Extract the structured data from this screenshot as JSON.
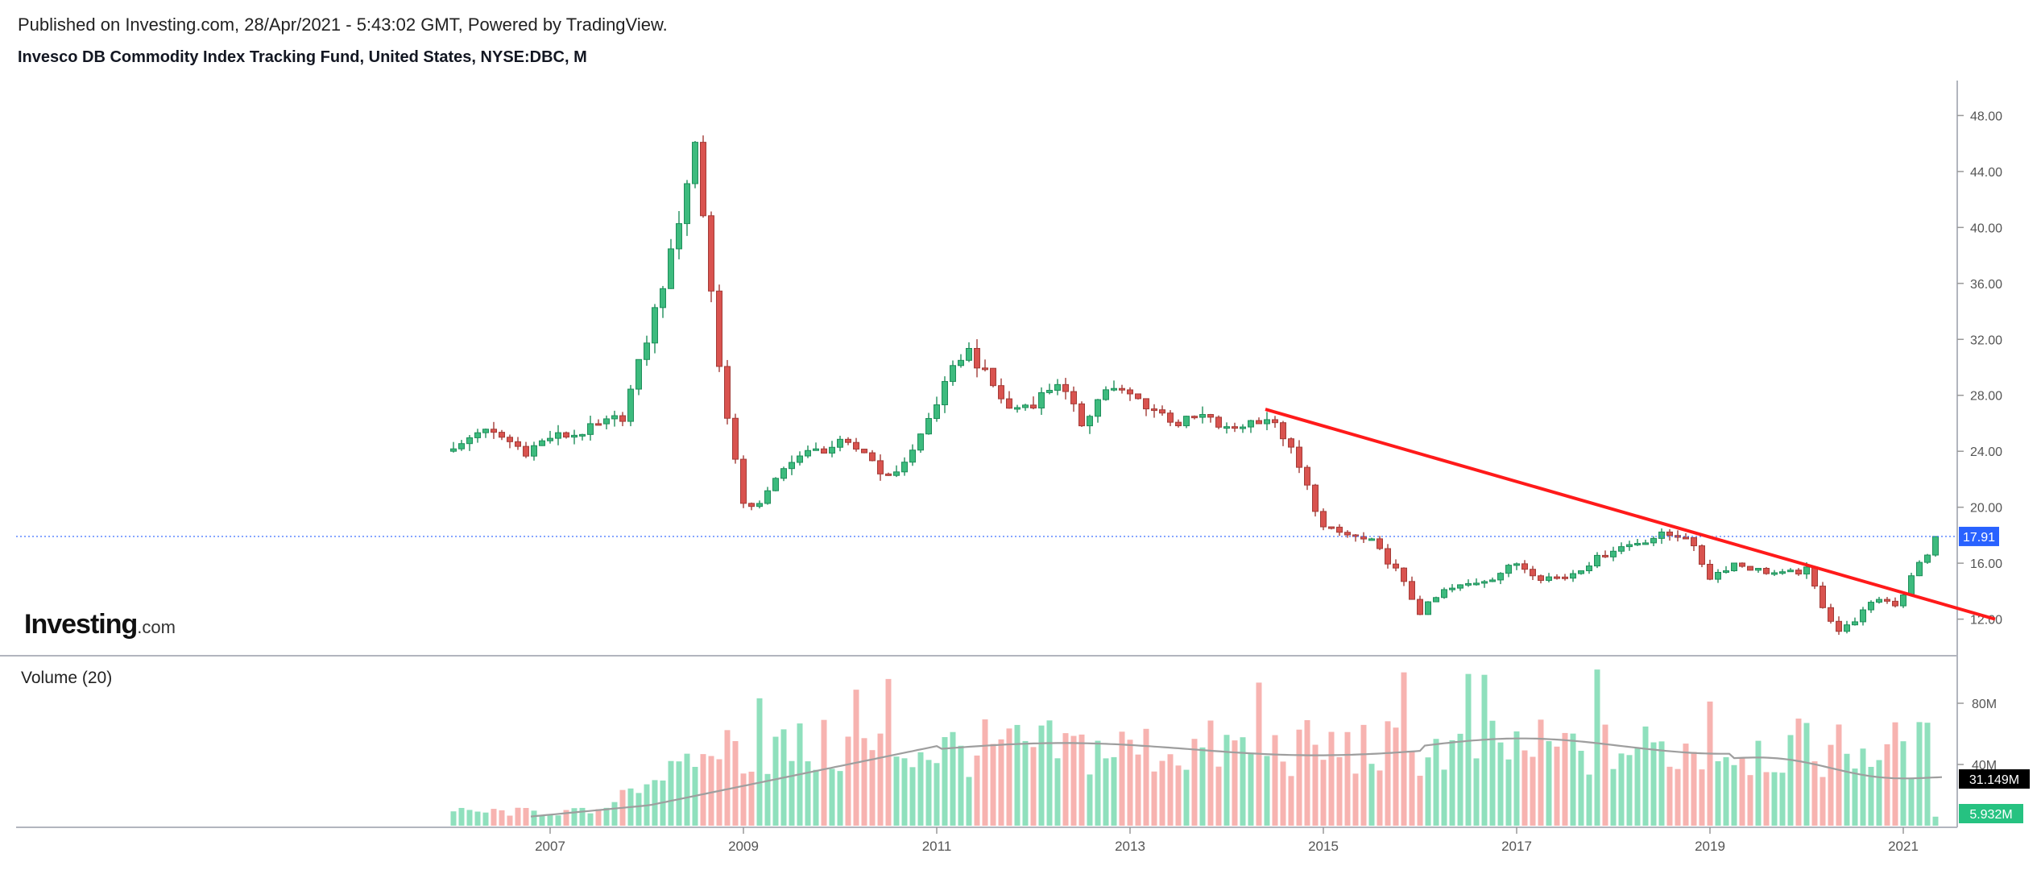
{
  "header": {
    "published": "Published on Investing.com, 28/Apr/2021 - 5:43:02 GMT, Powered by TradingView.",
    "title": "Invesco DB Commodity Index Tracking Fund, United States, NYSE:DBC, M"
  },
  "logo": {
    "main": "Investing",
    "suffix": ".com"
  },
  "volume_panel": {
    "label": "Volume (20)"
  },
  "colors": {
    "up": "#26a69a",
    "up_fill": "#3dbb7e",
    "down": "#ef5350",
    "down_fill": "#d9534f",
    "vol_up": "#8fe0bd",
    "vol_down": "#f7b3b0",
    "trendline": "#ff1a1a",
    "price_line": "#2962ff",
    "ma_line": "#9e9e9e"
  },
  "chart_data": [
    {
      "type": "candlestick",
      "interval": "M",
      "ylim": [
        9.5,
        50.5
      ],
      "y_ticks": [
        12,
        16,
        20,
        24,
        28,
        32,
        36,
        40,
        44,
        48
      ],
      "y_tick_labels": [
        "12.00",
        "16.00",
        "20.00",
        "24.00",
        "28.00",
        "32.00",
        "36.00",
        "40.00",
        "44.00",
        "48.00"
      ],
      "x_range": [
        2005.9,
        2021.95
      ],
      "x_ticks": [
        2007,
        2009,
        2011,
        2013,
        2015,
        2017,
        2019,
        2021
      ],
      "x_tick_labels": [
        "2007",
        "2009",
        "2011",
        "2013",
        "2015",
        "2017",
        "2019",
        "2021"
      ],
      "last_price": {
        "value": 17.91,
        "label": "17.91"
      },
      "anchors": [
        [
          2006.0,
          24.0
        ],
        [
          2006.25,
          25.5
        ],
        [
          2006.5,
          25.0
        ],
        [
          2006.75,
          24.0
        ],
        [
          2007.0,
          25.0
        ],
        [
          2007.25,
          25.2
        ],
        [
          2007.5,
          25.8
        ],
        [
          2007.75,
          26.5
        ],
        [
          2008.0,
          32.0
        ],
        [
          2008.25,
          38.0
        ],
        [
          2008.5,
          46.0
        ],
        [
          2008.6,
          40.0
        ],
        [
          2008.75,
          30.0
        ],
        [
          2009.0,
          20.0
        ],
        [
          2009.2,
          20.5
        ],
        [
          2009.5,
          23.5
        ],
        [
          2009.75,
          24.0
        ],
        [
          2010.0,
          24.5
        ],
        [
          2010.25,
          24.0
        ],
        [
          2010.5,
          22.0
        ],
        [
          2010.75,
          24.0
        ],
        [
          2011.0,
          27.5
        ],
        [
          2011.3,
          31.5
        ],
        [
          2011.5,
          29.5
        ],
        [
          2011.75,
          27.0
        ],
        [
          2012.0,
          27.5
        ],
        [
          2012.25,
          29.0
        ],
        [
          2012.5,
          26.0
        ],
        [
          2012.75,
          28.5
        ],
        [
          2013.0,
          28.0
        ],
        [
          2013.25,
          27.0
        ],
        [
          2013.5,
          26.0
        ],
        [
          2013.75,
          26.5
        ],
        [
          2014.0,
          25.5
        ],
        [
          2014.4,
          26.5
        ],
        [
          2014.6,
          25.0
        ],
        [
          2014.8,
          22.0
        ],
        [
          2015.0,
          18.5
        ],
        [
          2015.25,
          18.0
        ],
        [
          2015.5,
          17.5
        ],
        [
          2015.75,
          15.5
        ],
        [
          2016.0,
          12.5
        ],
        [
          2016.25,
          14.0
        ],
        [
          2016.5,
          14.5
        ],
        [
          2016.75,
          15.0
        ],
        [
          2017.0,
          16.0
        ],
        [
          2017.25,
          15.0
        ],
        [
          2017.5,
          15.0
        ],
        [
          2017.75,
          16.0
        ],
        [
          2018.0,
          17.0
        ],
        [
          2018.25,
          17.5
        ],
        [
          2018.5,
          18.0
        ],
        [
          2018.75,
          18.0
        ],
        [
          2019.0,
          15.0
        ],
        [
          2019.25,
          16.0
        ],
        [
          2019.5,
          15.5
        ],
        [
          2019.75,
          15.2
        ],
        [
          2020.0,
          15.5
        ],
        [
          2020.2,
          12.5
        ],
        [
          2020.35,
          11.0
        ],
        [
          2020.5,
          12.0
        ],
        [
          2020.75,
          13.5
        ],
        [
          2020.95,
          13.0
        ],
        [
          2021.1,
          15.5
        ],
        [
          2021.25,
          16.5
        ],
        [
          2021.35,
          17.91
        ]
      ],
      "trendline": {
        "from": [
          2014.4,
          27.0
        ],
        "to": [
          2021.95,
          12.0
        ]
      }
    },
    {
      "type": "bar",
      "series": "volume",
      "ylim": [
        0,
        100
      ],
      "y_ticks": [
        40,
        80
      ],
      "y_tick_labels": [
        "40M",
        "80M"
      ],
      "ma_label": "31.149M",
      "last_volume_label": "5.932M"
    }
  ]
}
